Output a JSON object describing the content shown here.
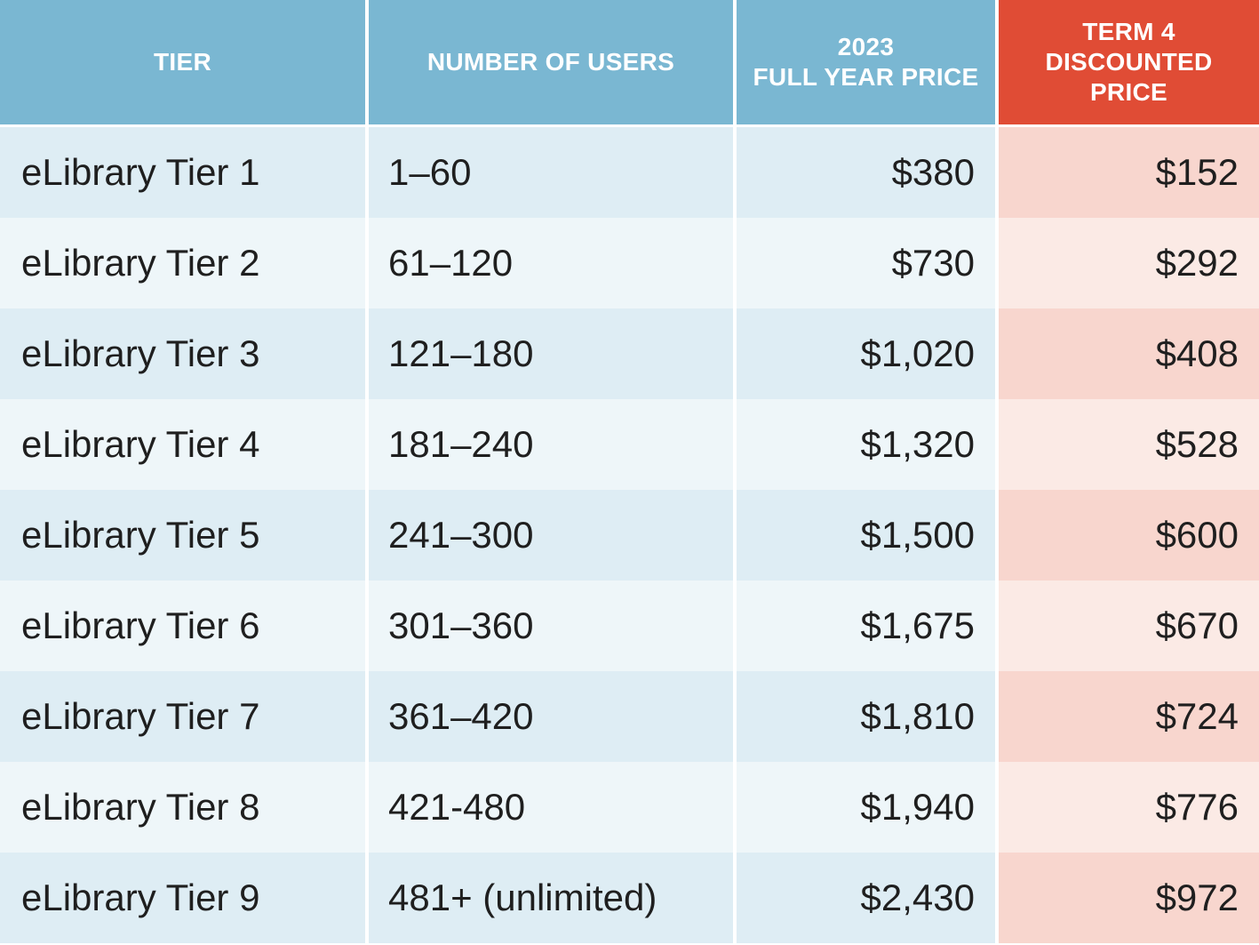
{
  "header": {
    "tier": "TIER",
    "users": "NUMBER OF USERS",
    "full_year": "2023\nFULL YEAR PRICE",
    "discounted": "TERM 4\nDISCOUNTED\nPRICE"
  },
  "colors": {
    "header_blue": "#7ab7d2",
    "header_red": "#e04c35",
    "row_blue_dark": "#deedf4",
    "row_blue_light": "#eef6f9",
    "row_red_dark": "#f8d6ce",
    "row_red_light": "#fbeae5"
  },
  "rows": [
    {
      "tier": "eLibrary Tier 1",
      "users": "1–60",
      "full_year": "$380",
      "discounted": "$152"
    },
    {
      "tier": "eLibrary Tier 2",
      "users": "61–120",
      "full_year": "$730",
      "discounted": "$292"
    },
    {
      "tier": "eLibrary Tier 3",
      "users": "121–180",
      "full_year": "$1,020",
      "discounted": "$408"
    },
    {
      "tier": "eLibrary Tier 4",
      "users": "181–240",
      "full_year": "$1,320",
      "discounted": "$528"
    },
    {
      "tier": "eLibrary Tier 5",
      "users": "241–300",
      "full_year": "$1,500",
      "discounted": "$600"
    },
    {
      "tier": "eLibrary Tier 6",
      "users": "301–360",
      "full_year": "$1,675",
      "discounted": "$670"
    },
    {
      "tier": "eLibrary Tier 7",
      "users": "361–420",
      "full_year": "$1,810",
      "discounted": "$724"
    },
    {
      "tier": "eLibrary Tier 8",
      "users": "421-480",
      "full_year": "$1,940",
      "discounted": "$776"
    },
    {
      "tier": "eLibrary Tier 9",
      "users": "481+ (unlimited)",
      "full_year": "$2,430",
      "discounted": "$972"
    }
  ]
}
